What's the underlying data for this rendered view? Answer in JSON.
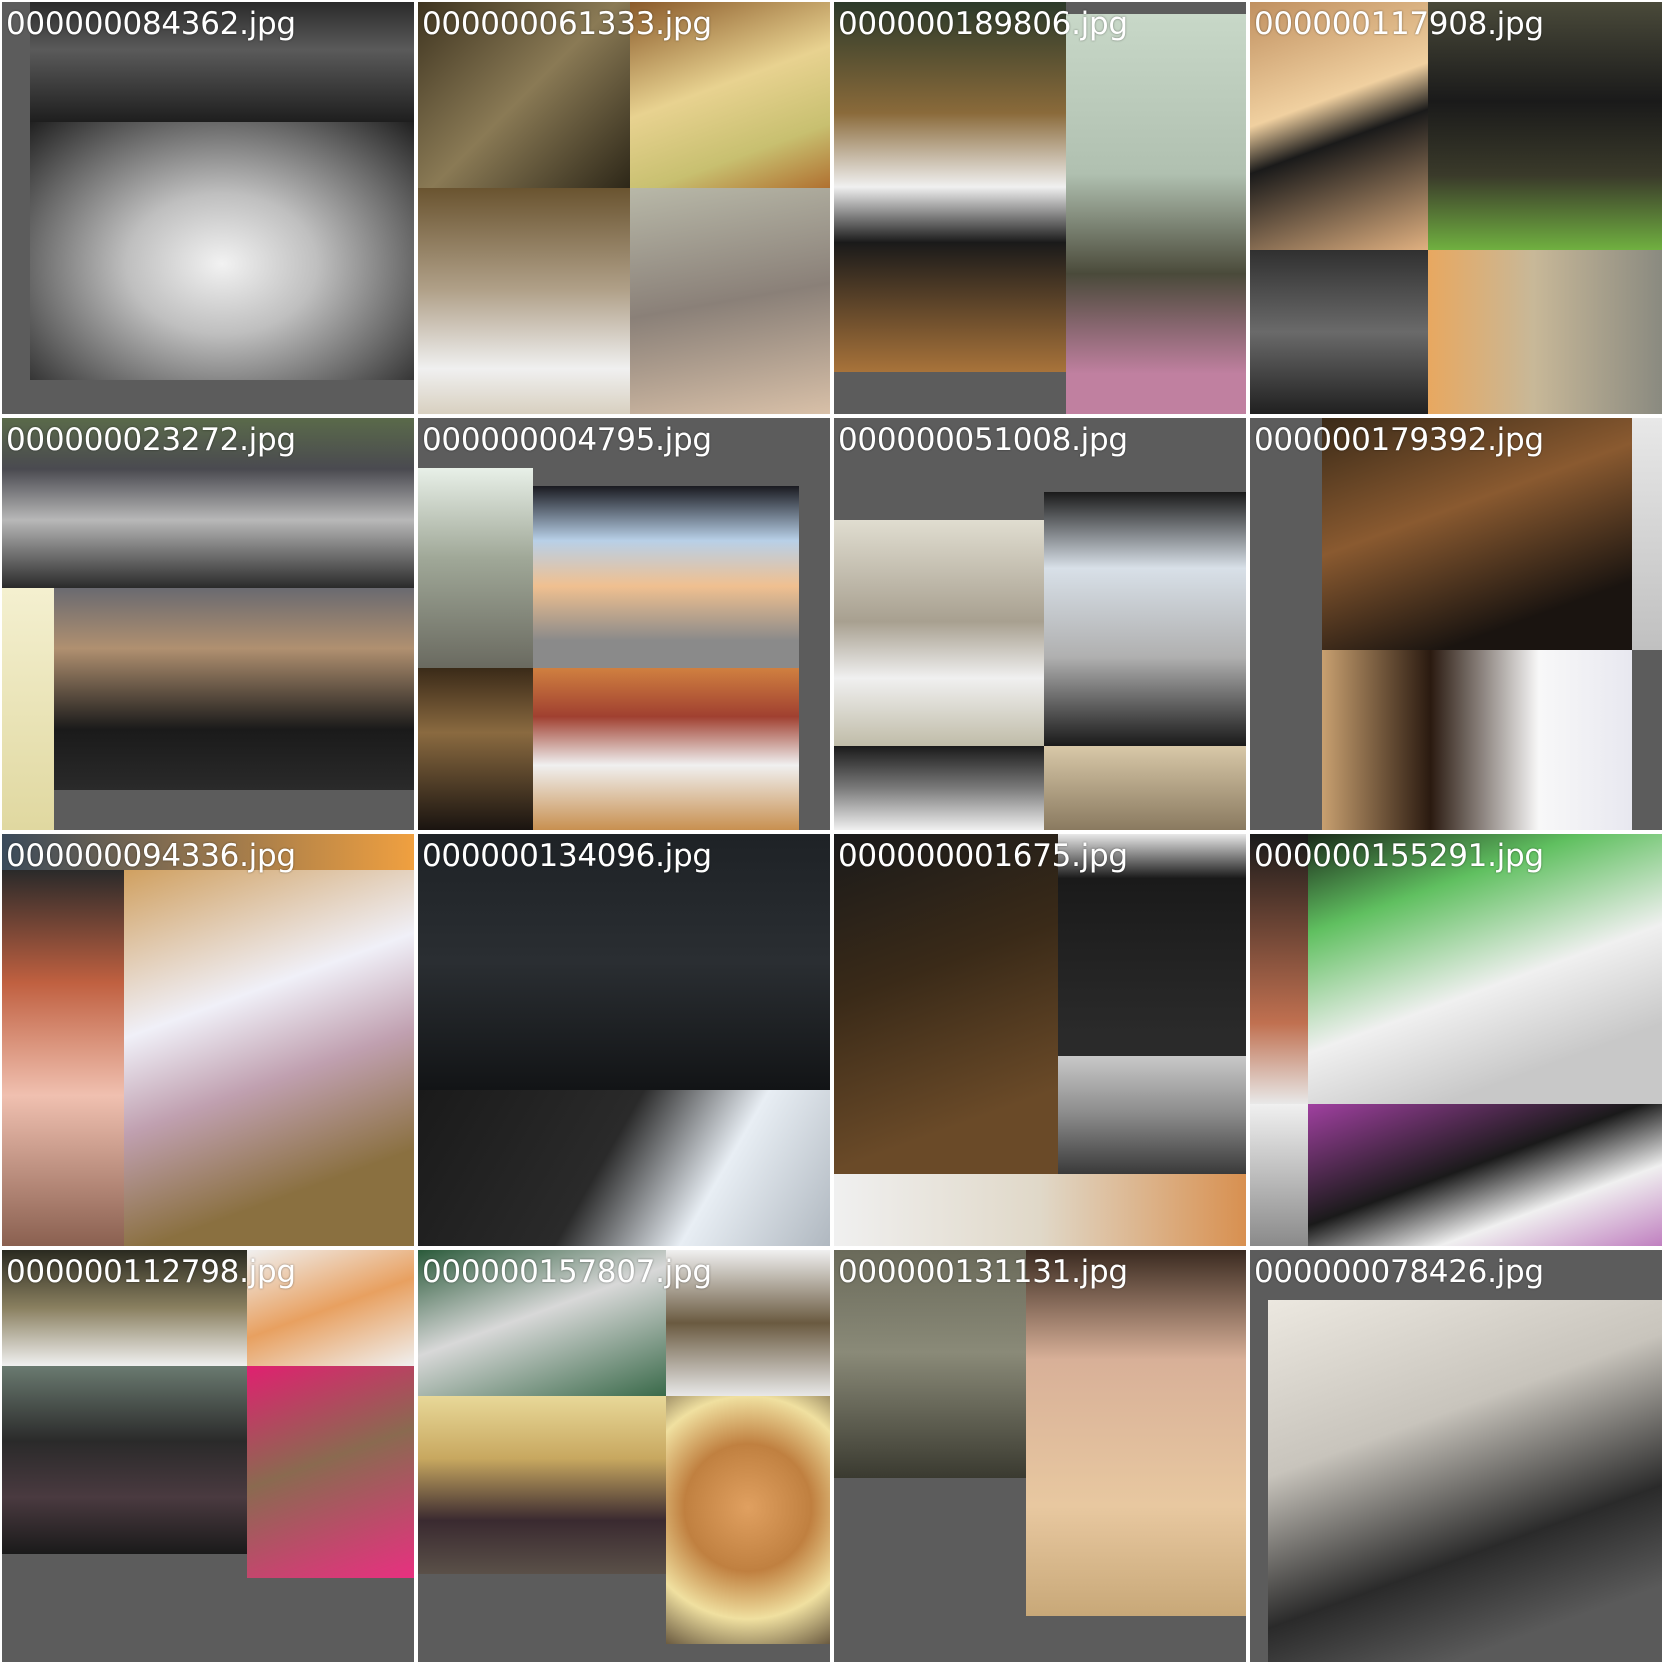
{
  "tiles": [
    {
      "filename": "000000084362.jpg"
    },
    {
      "filename": "000000061333.jpg"
    },
    {
      "filename": "000000189806.jpg"
    },
    {
      "filename": "000000117908.jpg"
    },
    {
      "filename": "000000023272.jpg"
    },
    {
      "filename": "000000004795.jpg"
    },
    {
      "filename": "000000051008.jpg"
    },
    {
      "filename": "000000179392.jpg"
    },
    {
      "filename": "000000094336.jpg"
    },
    {
      "filename": "000000134096.jpg"
    },
    {
      "filename": "000000001675.jpg"
    },
    {
      "filename": "000000155291.jpg"
    },
    {
      "filename": "000000112798.jpg"
    },
    {
      "filename": "000000157807.jpg"
    },
    {
      "filename": "000000131131.jpg"
    },
    {
      "filename": "000000078426.jpg"
    }
  ]
}
